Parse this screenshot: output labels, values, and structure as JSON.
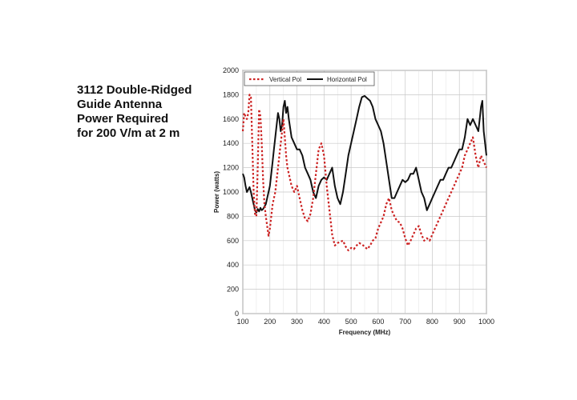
{
  "title_lines": [
    "3112 Double-Ridged",
    "Guide Antenna",
    "Power Required",
    "for 200 V/m at 2 m"
  ],
  "chart_data": {
    "type": "line",
    "title": "3112 Double-Ridged Guide Antenna Power Required for 200 V/m at 2 m",
    "xlabel": "Frequency (MHz)",
    "ylabel": "Power (watts)",
    "xlim": [
      100,
      1000
    ],
    "ylim": [
      0,
      2000
    ],
    "x_ticks": [
      100,
      200,
      300,
      400,
      500,
      600,
      700,
      800,
      900,
      1000
    ],
    "y_ticks": [
      0,
      200,
      400,
      600,
      800,
      1000,
      1200,
      1400,
      1600,
      1800,
      2000
    ],
    "grid": true,
    "legend_position": "top-left",
    "series": [
      {
        "name": "Vertical Pol",
        "color": "#cc2222",
        "style": "dotted",
        "x": [
          100,
          105,
          110,
          115,
          120,
          125,
          130,
          135,
          140,
          145,
          150,
          155,
          160,
          165,
          170,
          175,
          180,
          185,
          190,
          195,
          200,
          210,
          220,
          230,
          240,
          250,
          255,
          260,
          265,
          270,
          280,
          290,
          300,
          310,
          320,
          330,
          340,
          350,
          360,
          370,
          380,
          390,
          400,
          410,
          420,
          430,
          440,
          450,
          460,
          470,
          480,
          490,
          500,
          510,
          520,
          530,
          540,
          550,
          560,
          570,
          580,
          590,
          600,
          610,
          620,
          630,
          640,
          650,
          660,
          670,
          680,
          690,
          700,
          710,
          720,
          730,
          740,
          750,
          760,
          770,
          780,
          790,
          800,
          810,
          820,
          830,
          840,
          850,
          860,
          870,
          880,
          890,
          900,
          910,
          920,
          930,
          940,
          950,
          960,
          970,
          980,
          990,
          1000
        ],
        "values": [
          1500,
          1650,
          1620,
          1600,
          1650,
          1800,
          1780,
          1400,
          1000,
          820,
          800,
          1200,
          1680,
          1620,
          1400,
          1100,
          900,
          800,
          720,
          640,
          700,
          900,
          1000,
          1200,
          1400,
          1600,
          1450,
          1300,
          1200,
          1150,
          1050,
          1000,
          1050,
          950,
          850,
          780,
          760,
          820,
          950,
          1150,
          1350,
          1400,
          1300,
          1050,
          850,
          650,
          560,
          580,
          590,
          600,
          550,
          520,
          540,
          530,
          560,
          580,
          570,
          550,
          530,
          560,
          600,
          620,
          700,
          750,
          800,
          900,
          950,
          850,
          800,
          760,
          750,
          700,
          620,
          560,
          600,
          650,
          700,
          720,
          650,
          600,
          620,
          600,
          650,
          700,
          750,
          800,
          850,
          900,
          950,
          1000,
          1050,
          1100,
          1150,
          1200,
          1300,
          1350,
          1400,
          1450,
          1300,
          1200,
          1300,
          1250,
          1200
        ]
      },
      {
        "name": "Horizontal Pol",
        "color": "#111111",
        "style": "solid",
        "x": [
          100,
          105,
          110,
          115,
          120,
          125,
          130,
          135,
          140,
          145,
          150,
          155,
          160,
          165,
          170,
          175,
          180,
          185,
          190,
          195,
          200,
          205,
          210,
          215,
          220,
          225,
          230,
          235,
          240,
          245,
          250,
          255,
          260,
          265,
          270,
          280,
          290,
          300,
          310,
          320,
          330,
          340,
          350,
          360,
          370,
          380,
          390,
          400,
          410,
          420,
          430,
          440,
          450,
          460,
          470,
          480,
          490,
          500,
          510,
          520,
          530,
          540,
          550,
          560,
          570,
          580,
          590,
          600,
          610,
          620,
          630,
          640,
          650,
          660,
          670,
          680,
          690,
          700,
          710,
          720,
          730,
          740,
          750,
          760,
          770,
          780,
          790,
          800,
          810,
          820,
          830,
          840,
          850,
          860,
          870,
          880,
          890,
          900,
          910,
          920,
          930,
          940,
          950,
          960,
          970,
          975,
          980,
          985,
          990,
          995,
          1000
        ],
        "values": [
          1150,
          1120,
          1050,
          1000,
          1020,
          1040,
          1000,
          950,
          900,
          850,
          830,
          860,
          840,
          870,
          850,
          860,
          880,
          900,
          950,
          1000,
          1050,
          1150,
          1250,
          1350,
          1450,
          1550,
          1650,
          1600,
          1500,
          1550,
          1700,
          1750,
          1650,
          1700,
          1600,
          1450,
          1400,
          1350,
          1350,
          1300,
          1200,
          1150,
          1100,
          1000,
          950,
          1050,
          1100,
          1120,
          1100,
          1150,
          1200,
          1050,
          950,
          900,
          1000,
          1150,
          1300,
          1400,
          1500,
          1600,
          1700,
          1780,
          1790,
          1770,
          1750,
          1700,
          1600,
          1550,
          1500,
          1400,
          1250,
          1100,
          950,
          950,
          1000,
          1050,
          1100,
          1080,
          1100,
          1150,
          1150,
          1200,
          1100,
          1000,
          950,
          850,
          900,
          950,
          1000,
          1050,
          1100,
          1100,
          1150,
          1200,
          1200,
          1250,
          1300,
          1350,
          1350,
          1450,
          1600,
          1550,
          1600,
          1550,
          1500,
          1600,
          1700,
          1750,
          1500,
          1400,
          1300
        ]
      }
    ]
  }
}
